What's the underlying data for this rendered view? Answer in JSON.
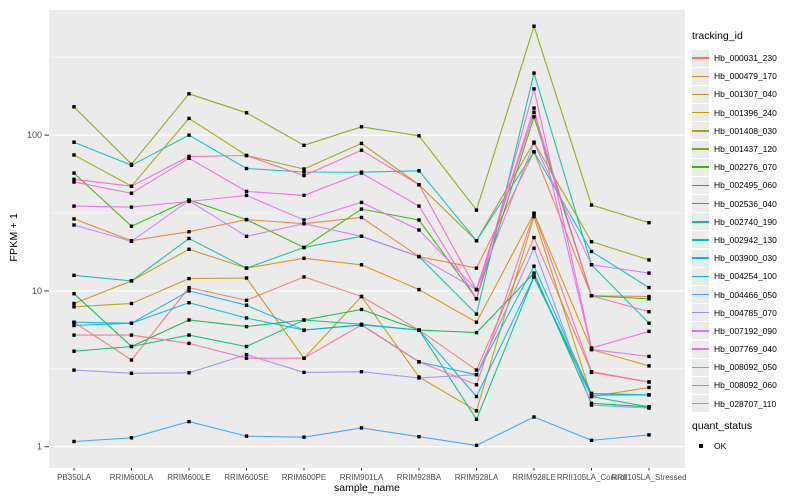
{
  "chart_data": {
    "type": "line",
    "title": "",
    "xlabel": "sample_name",
    "ylabel": "FPKM + 1",
    "y_scale": "log10",
    "y_ticks": [
      1,
      10,
      100
    ],
    "y_tick_labels": [
      "1",
      "10",
      "100"
    ],
    "y_minor_ticks": [
      3.162,
      31.62,
      316.2
    ],
    "ylim": [
      0.85,
      650
    ],
    "grid": true,
    "legend_position": "right",
    "panel_bg": "#EBEBEB",
    "grid_color": "#FFFFFF",
    "tick_label_color": "#4D4D4D",
    "tick_mark_color": "#333333",
    "marker": {
      "shape": "square",
      "color": "#000000",
      "size": 3.4
    },
    "legend": {
      "tracking_title": "tracking_id",
      "quant_title": "quant_status",
      "quant_value": "OK",
      "key_bg": "#EBEBEB"
    },
    "x_categories": [
      "PB350LA",
      "RRIM600LA",
      "RRIM600LE",
      "RRIM600SE",
      "RRIM600PE",
      "RRIM901LA",
      "RRIM928BA",
      "RRIM928LA",
      "RRIM928LE",
      "RRII105LA_Control",
      "RRII105LA_Stressed"
    ],
    "series": [
      {
        "name": "Hb_000031_230",
        "color": "#F8766D",
        "values": [
          6.3,
          3.6,
          10.5,
          8.7,
          12.3,
          9.2,
          5.6,
          3.1,
          22,
          3.0,
          2.6
        ]
      },
      {
        "name": "Hb_000479_170",
        "color": "#EA8331",
        "values": [
          29,
          21,
          24,
          28.7,
          27,
          29.6,
          16.6,
          14,
          78,
          9.3,
          9.2
        ]
      },
      {
        "name": "Hb_001307_040",
        "color": "#D89000",
        "values": [
          8.3,
          11.6,
          18.5,
          14,
          16.2,
          14.7,
          10.2,
          6.3,
          31.5,
          4.2,
          3.3
        ]
      },
      {
        "name": "Hb_001396_240",
        "color": "#C09B00",
        "values": [
          7.9,
          8.3,
          12,
          12.1,
          3.7,
          9.2,
          2.8,
          1.7,
          30,
          2.1,
          2.4
        ]
      },
      {
        "name": "Hb_001408_030",
        "color": "#A3A500",
        "values": [
          74.5,
          47,
          128,
          74,
          60.6,
          88.5,
          48,
          21,
          90,
          20.7,
          15.8
        ]
      },
      {
        "name": "Hb_001437_120",
        "color": "#7CAE00",
        "values": [
          152,
          65,
          184,
          139,
          86,
          113,
          99,
          33,
          500,
          35.6,
          27.4
        ]
      },
      {
        "name": "Hb_002276_070",
        "color": "#39B600",
        "values": [
          57,
          26,
          38.4,
          28.7,
          19,
          33.5,
          28.5,
          8.9,
          131,
          9.3,
          8.9
        ]
      },
      {
        "name": "Hb_002495_060",
        "color": "#00BB4E",
        "values": [
          9.6,
          4.4,
          6.5,
          5.9,
          6.5,
          7.6,
          5.6,
          5.4,
          13,
          1.9,
          1.8
        ]
      },
      {
        "name": "Hb_002536_040",
        "color": "#00BF7D",
        "values": [
          4.1,
          4.4,
          5.2,
          4.4,
          6.5,
          6.1,
          5.6,
          1.5,
          12.3,
          2.1,
          1.8
        ]
      },
      {
        "name": "Hb_002740_190",
        "color": "#00C1A3",
        "values": [
          12.6,
          11.6,
          21.7,
          14,
          19,
          22.4,
          16.6,
          7.1,
          250,
          14.7,
          6.2
        ]
      },
      {
        "name": "Hb_002942_130",
        "color": "#00BFC4",
        "values": [
          90,
          64,
          100,
          61,
          58,
          57.8,
          59,
          21,
          78,
          17.9,
          10.5
        ]
      },
      {
        "name": "Hb_003900_030",
        "color": "#00BAE0",
        "values": [
          6.3,
          6.2,
          8.4,
          6.7,
          5.6,
          6.05,
          3.5,
          2.9,
          14.4,
          2.14,
          2.15
        ]
      },
      {
        "name": "Hb_004254_100",
        "color": "#00B0F6",
        "values": [
          6.0,
          6.2,
          10,
          8.1,
          5.6,
          6.05,
          5.6,
          2.1,
          12.3,
          2.2,
          2.15
        ]
      },
      {
        "name": "Hb_004466_050",
        "color": "#35A2FF",
        "values": [
          1.08,
          1.14,
          1.45,
          1.17,
          1.15,
          1.32,
          1.16,
          1.02,
          1.55,
          1.1,
          1.19
        ]
      },
      {
        "name": "Hb_004785_070",
        "color": "#9590FF",
        "values": [
          3.1,
          2.96,
          2.98,
          3.9,
          3.0,
          3.03,
          2.76,
          2.9,
          18.8,
          1.85,
          1.77
        ]
      },
      {
        "name": "Hb_007192_090",
        "color": "#C77CFF",
        "values": [
          26.5,
          20.8,
          38,
          22.4,
          27,
          22.4,
          16.6,
          10.2,
          89,
          14.7,
          13
        ]
      },
      {
        "name": "Hb_007769_040",
        "color": "#E76BF3",
        "values": [
          35,
          34.5,
          37.5,
          41,
          28.5,
          37,
          24.6,
          10.2,
          149,
          4.2,
          3.8
        ]
      },
      {
        "name": "Hb_008092_050",
        "color": "#FA62DB",
        "values": [
          50,
          42.4,
          71,
          43.5,
          41,
          57,
          35,
          8.9,
          198,
          4.3,
          5.5
        ]
      },
      {
        "name": "Hb_008092_060",
        "color": "#FF62BC",
        "values": [
          52,
          47,
          73,
          74,
          55,
          80,
          48,
          10.2,
          140,
          9.3,
          7.35
        ]
      },
      {
        "name": "Hb_028707_110",
        "color": "#FF6A98",
        "values": [
          5.2,
          5.2,
          4.6,
          3.7,
          3.7,
          6.05,
          3.5,
          2.5,
          31.5,
          3.03,
          2.6
        ]
      }
    ]
  }
}
